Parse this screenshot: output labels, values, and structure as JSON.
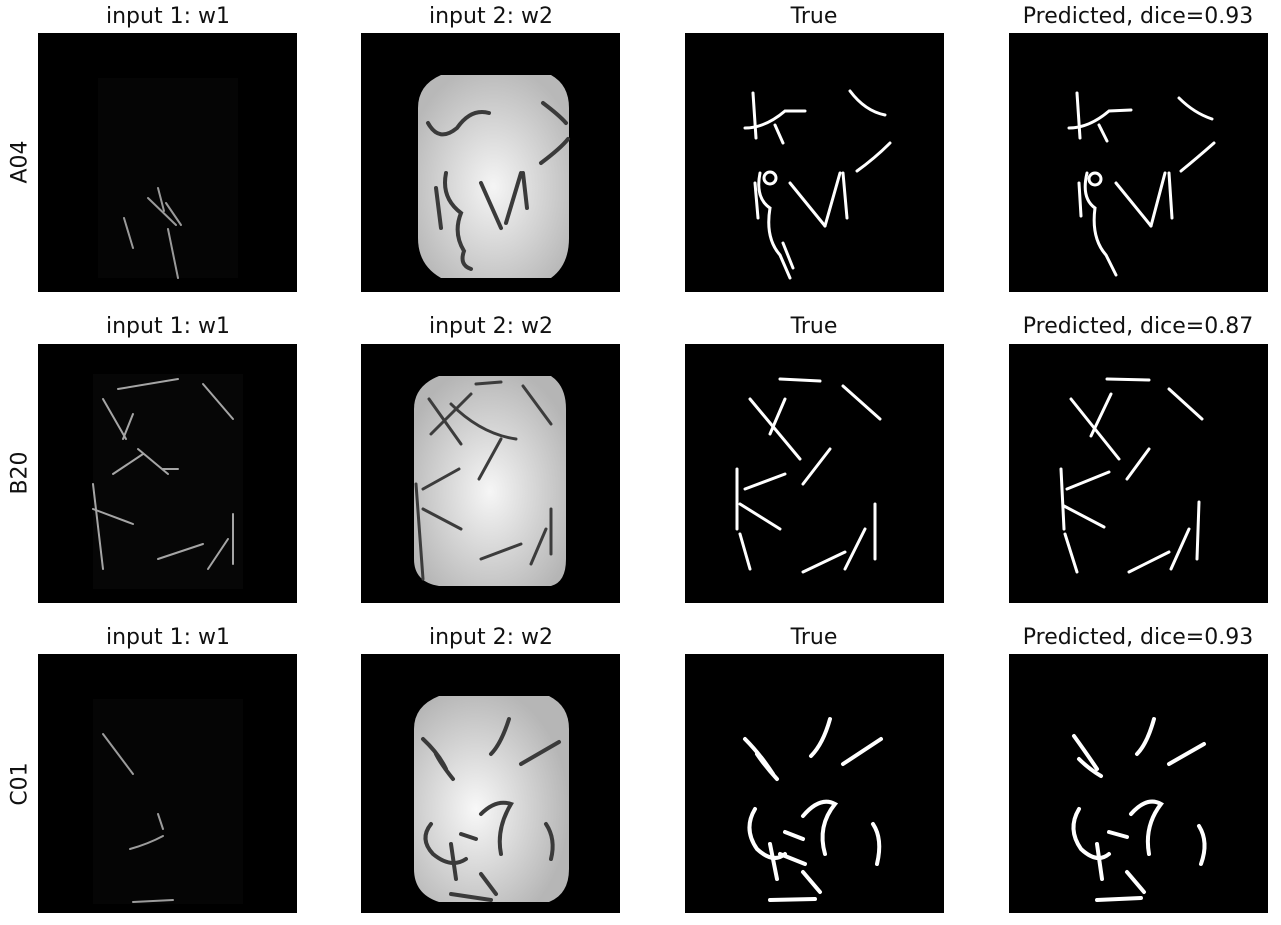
{
  "column_titles": {
    "input1": "input 1: w1",
    "input2": "input 2: w2",
    "true": "True"
  },
  "rows": [
    {
      "label": "A04",
      "predicted_title": "Predicted, dice=0.93"
    },
    {
      "label": "B20",
      "predicted_title": "Predicted, dice=0.87"
    },
    {
      "label": "C01",
      "predicted_title": "Predicted, dice=0.93"
    }
  ],
  "colors": {
    "background": "#ffffff",
    "panel": "#000000",
    "mask": "#ffffff",
    "plate": "#e8e8e8"
  }
}
